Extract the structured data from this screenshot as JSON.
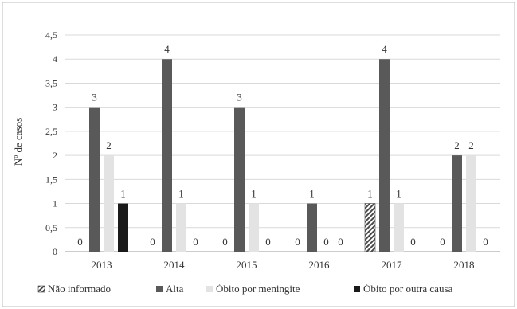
{
  "chart_data": {
    "type": "bar",
    "title": "",
    "xlabel": "",
    "ylabel": "Nº de casos",
    "ylim": [
      0,
      4.5
    ],
    "yticks": [
      "0",
      "0,5",
      "1",
      "1,5",
      "2",
      "2,5",
      "3",
      "3,5",
      "4",
      "4,5"
    ],
    "grid": true,
    "legend_position": "bottom",
    "categories": [
      "2013",
      "2014",
      "2015",
      "2016",
      "2017",
      "2018"
    ],
    "series": [
      {
        "name": "Não informado",
        "values": [
          0,
          0,
          0,
          0,
          1,
          0
        ],
        "color": "#555555",
        "pattern": "hatch"
      },
      {
        "name": "Alta",
        "values": [
          3,
          4,
          3,
          1,
          4,
          2
        ],
        "color": "#595959",
        "pattern": "solid"
      },
      {
        "name": "Óbito por meningite",
        "values": [
          2,
          1,
          1,
          0,
          1,
          2
        ],
        "color": "#e3e3e3",
        "pattern": "solid"
      },
      {
        "name": "Óbito por outra causa",
        "values": [
          1,
          0,
          0,
          0,
          0,
          0
        ],
        "color": "#1a1a1a",
        "pattern": "solid"
      }
    ],
    "data_labels": [
      [
        "0",
        "0",
        "0",
        "0",
        "1",
        "0"
      ],
      [
        "3",
        "4",
        "3",
        "1",
        "4",
        "2"
      ],
      [
        "2",
        "1",
        "1",
        "0",
        "1",
        "2"
      ],
      [
        "1",
        "0",
        "0",
        "0",
        "0",
        "0"
      ]
    ]
  }
}
